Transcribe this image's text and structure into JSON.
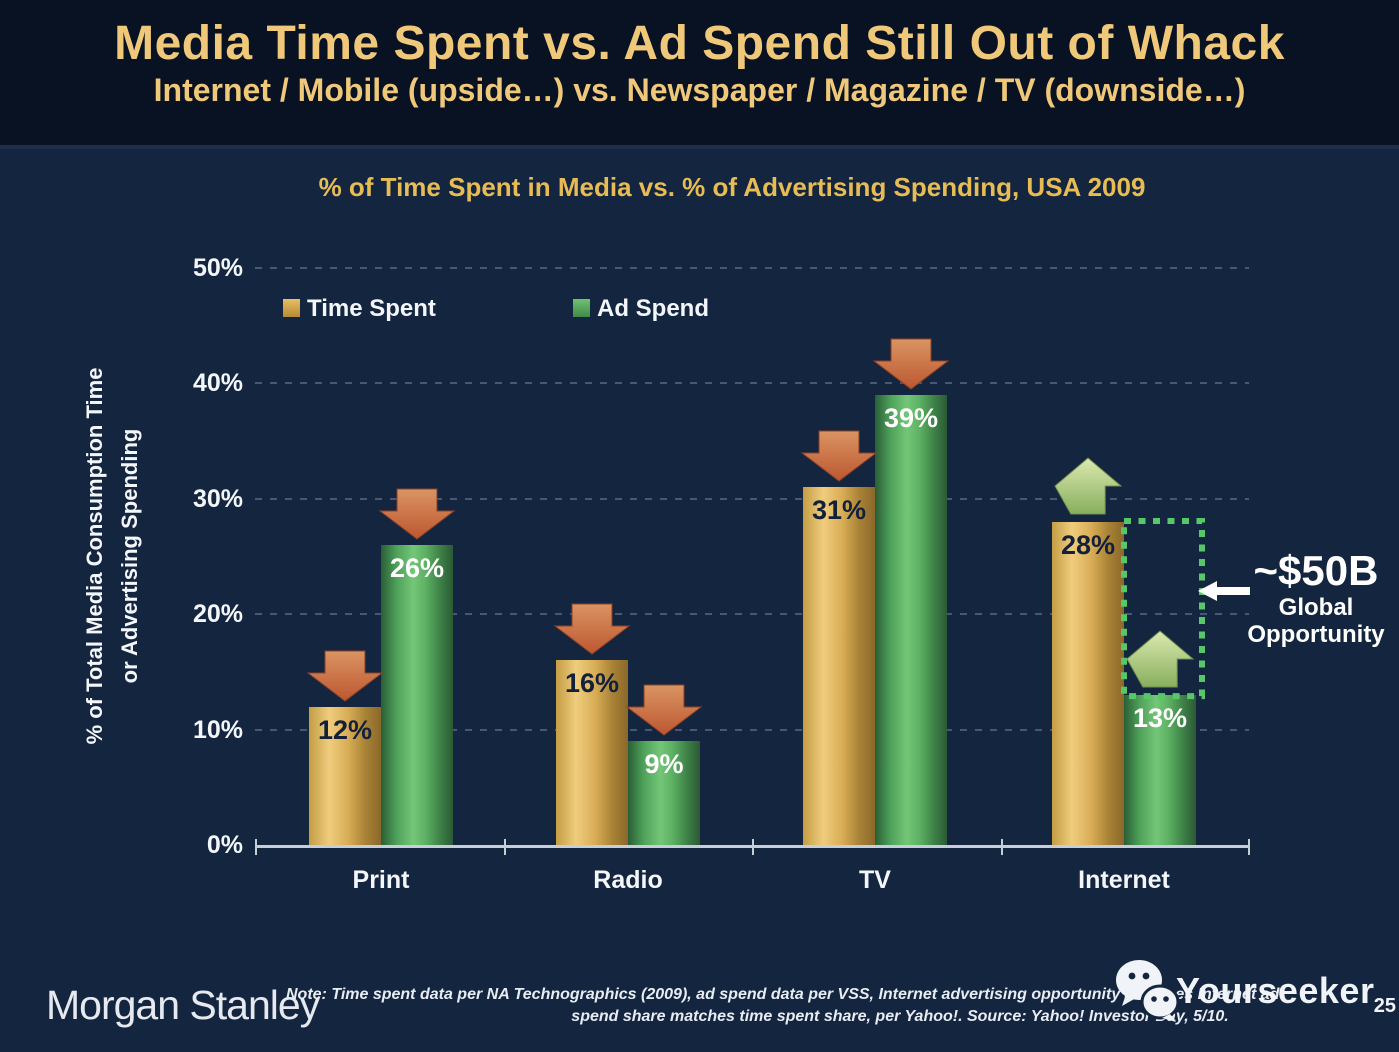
{
  "slide": {
    "title": "Media Time Spent vs. Ad Spend Still Out of Whack",
    "subtitle": "Internet / Mobile (upside…) vs. Newspaper / Magazine / TV (downside…)"
  },
  "chart": {
    "title": "% of Time Spent in Media vs. % of Advertising Spending, USA 2009",
    "y_axis_title_line1": "% of Total Media Consumption Time",
    "y_axis_title_line2": "or Advertising Spending"
  },
  "chart_data": {
    "type": "bar",
    "title": "% of Time Spent in Media vs. % of Advertising Spending, USA 2009",
    "categories": [
      "Print",
      "Radio",
      "TV",
      "Internet"
    ],
    "series": [
      {
        "name": "Time Spent",
        "values": [
          12,
          16,
          31,
          28
        ],
        "color": "#D2A749",
        "value_label_color": "#13203A"
      },
      {
        "name": "Ad Spend",
        "values": [
          26,
          9,
          39,
          13
        ],
        "color": "#55A85B",
        "value_label_color": "#FFFFFF"
      }
    ],
    "value_suffix": "%",
    "ylabel": "% of Total Media Consumption Time or Advertising Spending",
    "ylim": [
      0,
      50
    ],
    "yticks": [
      "50%",
      "40%",
      "30%",
      "20%",
      "10%",
      "0%"
    ],
    "grid": "dotted horizontal",
    "legend_position": "top-left inside",
    "arrows": [
      {
        "category": "Print",
        "series": "both",
        "direction": "down"
      },
      {
        "category": "Radio",
        "series": "both",
        "direction": "down"
      },
      {
        "category": "TV",
        "series": "both",
        "direction": "down"
      },
      {
        "category": "Internet",
        "series": "both",
        "direction": "up"
      }
    ],
    "annotations": {
      "opportunity": {
        "category": "Internet",
        "series": "Ad Spend",
        "from_value": 13,
        "to_value": 28,
        "label": "~$50B",
        "sublabel_line1": "Global",
        "sublabel_line2": "Opportunity",
        "box_color": "#58C768"
      }
    }
  },
  "colors": {
    "header_background": "#081223",
    "body_background": "#14253F",
    "title_gold": "#EFC87A",
    "chart_title_gold": "#E8BC55",
    "bar_gold": "#D2A749",
    "bar_green": "#55A85B",
    "down_arrow": "#C66438",
    "up_arrow": "#B5CC84",
    "opportunity_box": "#58C768",
    "axis_line": "#C7CDD9",
    "text_white": "#F3F6FA"
  },
  "icons": {
    "watermark": "wechat-bubbles-icon",
    "opportunity_pointer": "left-arrow-icon",
    "trend_down": "down-arrow-icon",
    "trend_up": "up-arrow-icon"
  },
  "footer": {
    "logo": "Morgan Stanley",
    "note_line1": "Note: Time spent data per NA Technographics (2009), ad spend data per VSS, Internet advertising opportunity assumes Internet ad",
    "note_line2": "spend share matches time spent share, per Yahoo!. Source: Yahoo! Investor Day, 5/10.",
    "watermark": "Yourseeker",
    "page_number": "25"
  }
}
